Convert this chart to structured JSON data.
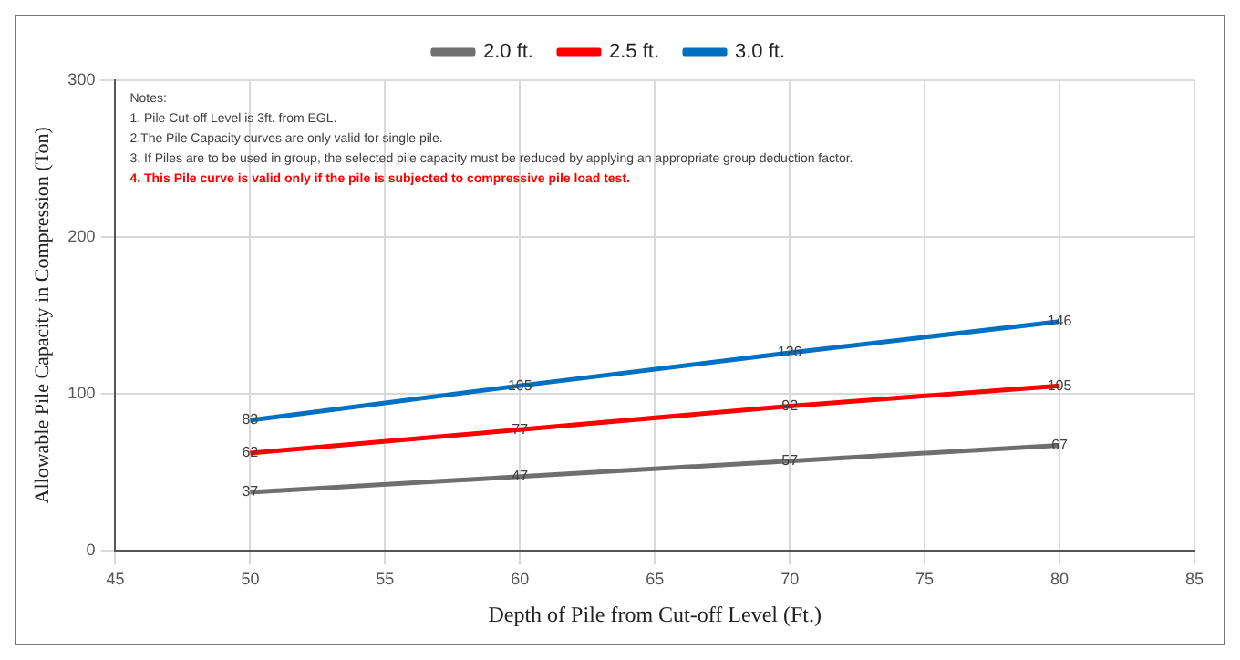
{
  "chart_data": {
    "type": "line",
    "xlabel": "Depth of Pile from Cut-off Level (Ft.)",
    "ylabel": "Allowable Pile Capacity in Compression (Ton)",
    "x": [
      50,
      60,
      70,
      80
    ],
    "series": [
      {
        "name": "2.0 ft.",
        "color": "#6f6f6f",
        "values": [
          37,
          47,
          57,
          67
        ]
      },
      {
        "name": "2.5 ft.",
        "color": "#ff0000",
        "values": [
          62,
          77,
          92,
          105
        ]
      },
      {
        "name": "3.0 ft.",
        "color": "#0070c0",
        "values": [
          83,
          105,
          126,
          146
        ]
      }
    ],
    "xlim": [
      45,
      85
    ],
    "xticks": [
      45,
      50,
      55,
      60,
      65,
      70,
      75,
      80,
      85
    ],
    "ylim": [
      0,
      300
    ],
    "yticks": [
      0,
      100,
      200,
      300
    ],
    "grid": true,
    "legend": "top",
    "marker": "none",
    "data_labels": true,
    "annotations": [
      "Notes:",
      "1. Pile Cut-off Level is 3ft. from EGL.",
      "2.The Pile Capacity curves are only valid for single pile.",
      "3. If Piles are to be used in group, the selected pile capacity must be reduced by applying an appropriate group deduction factor.",
      "4. This Pile curve is valid only if the pile is subjected to compressive pile load test."
    ]
  }
}
